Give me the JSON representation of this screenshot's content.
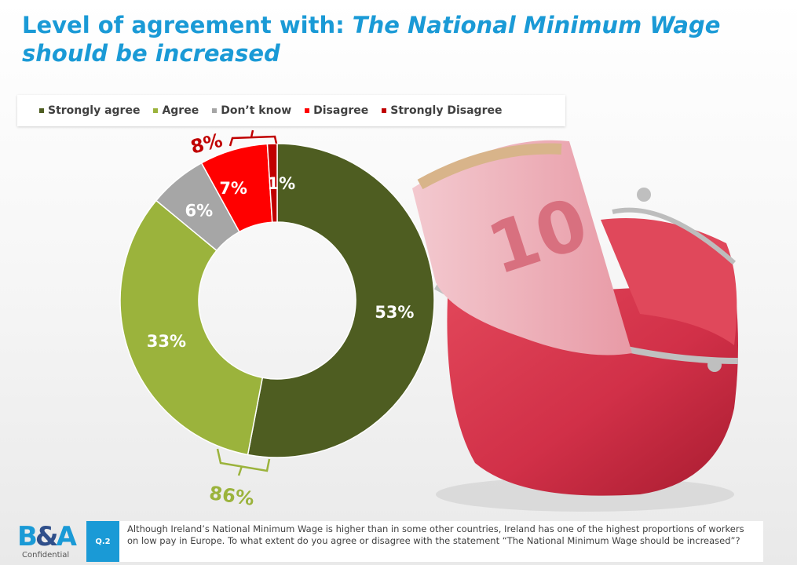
{
  "title": {
    "prefix": "Level of agreement with: ",
    "italic": "The National Minimum Wage should be increased"
  },
  "chart_data": {
    "type": "pie",
    "variant": "donut",
    "categories": [
      "Strongly agree",
      "Agree",
      "Don’t know",
      "Disagree",
      "Strongly Disagree"
    ],
    "values": [
      53,
      33,
      6,
      7,
      1
    ],
    "data_labels": [
      "53%",
      "33%",
      "6%",
      "7%",
      "1%"
    ],
    "colors": [
      "#4e5d21",
      "#9bb33c",
      "#a6a6a6",
      "#ff0000",
      "#c00000"
    ],
    "label_colors": [
      "#ffffff",
      "#ffffff",
      "#ffffff",
      "#ffffff",
      "#ffffff"
    ],
    "legend_position": "top",
    "annotations": [
      {
        "text": "86%",
        "spans": [
          "Strongly agree",
          "Agree"
        ],
        "color": "#9bb33c"
      },
      {
        "text": "8%",
        "spans": [
          "Disagree",
          "Strongly Disagree"
        ],
        "color": "#c00000"
      }
    ]
  },
  "footer": {
    "logo": {
      "left": "B",
      "amp": "&",
      "right": "A"
    },
    "confidential": "Confidential",
    "question_id": "Q.2",
    "question_text": "Although Ireland’s National Minimum Wage is higher than in some other countries, Ireland has one of the highest proportions of workers on low pay in Europe. To what extent do you agree or disagree with the statement “The National Minimum Wage should be increased”?"
  },
  "image": {
    "description_icon": "purse-with-euro-notes"
  }
}
